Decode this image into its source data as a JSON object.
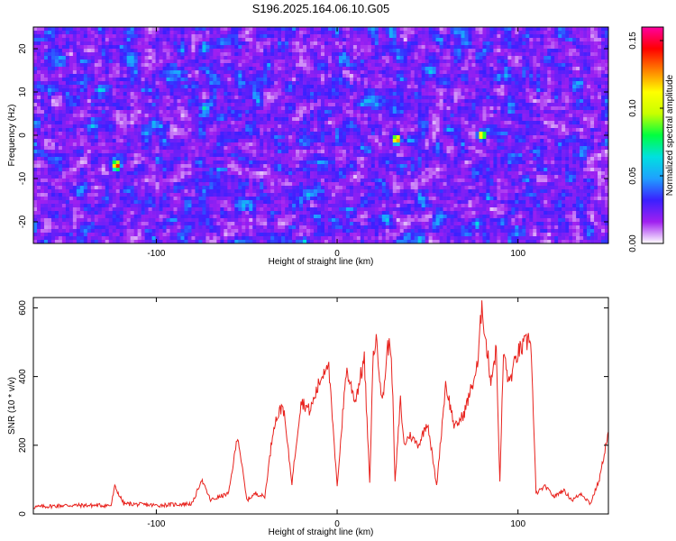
{
  "figure": {
    "title": "S196.2025.164.06.10.G05"
  },
  "colormap": [
    "#ffffff",
    "#a020f0",
    "#3a20ff",
    "#1fa0ff",
    "#00e0e0",
    "#00ff40",
    "#c8ff00",
    "#ffff00",
    "#ff8000",
    "#ff0000",
    "#ff00a0"
  ],
  "chart_data": [
    {
      "type": "heatmap",
      "xlabel": "Height of straight line (km)",
      "ylabel": "Frequency (Hz)",
      "xlim": [
        -168,
        150
      ],
      "ylim": [
        -25,
        25
      ],
      "x_ticks": [
        -100,
        0,
        100
      ],
      "y_ticks": [
        -20,
        -10,
        0,
        10,
        20
      ],
      "grid": false,
      "colorbar": {
        "label": "Normalized spectral amplitude",
        "range": [
          0,
          0.16
        ],
        "ticks": [
          "0.00",
          "0.05",
          "0.10",
          "0.15"
        ]
      },
      "description_values": {
        "value_range": [
          0,
          0.16
        ],
        "notable_peaks": [
          {
            "x": -122,
            "y": -7,
            "value": 0.15
          },
          {
            "x": 33,
            "y": -1,
            "value": 0.14
          },
          {
            "x": 80,
            "y": 0,
            "value": 0.13
          }
        ]
      }
    },
    {
      "type": "line",
      "xlabel": "Height of straight line (km)",
      "ylabel": "SNR (10 * v/v)",
      "xlim": [
        -168,
        150
      ],
      "ylim": [
        0,
        630
      ],
      "x_ticks": [
        -100,
        0,
        100
      ],
      "y_ticks": [
        0,
        200,
        400,
        600
      ],
      "grid": false,
      "series": [
        {
          "color": "#e8221d",
          "x": [
            -168,
            -150,
            -125,
            -123,
            -118,
            -100,
            -80,
            -75,
            -70,
            -60,
            -55,
            -50,
            -45,
            -40,
            -35,
            -30,
            -25,
            -20,
            -15,
            -10,
            -5,
            0,
            5,
            10,
            15,
            18,
            20,
            22,
            25,
            28,
            30,
            32,
            35,
            37,
            40,
            45,
            50,
            55,
            60,
            65,
            70,
            75,
            78,
            80,
            82,
            85,
            88,
            90,
            92,
            95,
            100,
            105,
            107,
            110,
            115,
            120,
            125,
            130,
            135,
            140,
            145,
            150
          ],
          "y": [
            20,
            25,
            25,
            80,
            30,
            25,
            30,
            100,
            40,
            60,
            230,
            40,
            60,
            50,
            260,
            320,
            90,
            330,
            300,
            380,
            450,
            80,
            420,
            330,
            450,
            90,
            480,
            500,
            320,
            490,
            480,
            90,
            330,
            200,
            230,
            200,
            270,
            80,
            380,
            250,
            290,
            380,
            440,
            620,
            510,
            390,
            480,
            90,
            470,
            380,
            470,
            500,
            520,
            60,
            80,
            50,
            70,
            40,
            60,
            30,
            100,
            240
          ]
        }
      ]
    }
  ]
}
